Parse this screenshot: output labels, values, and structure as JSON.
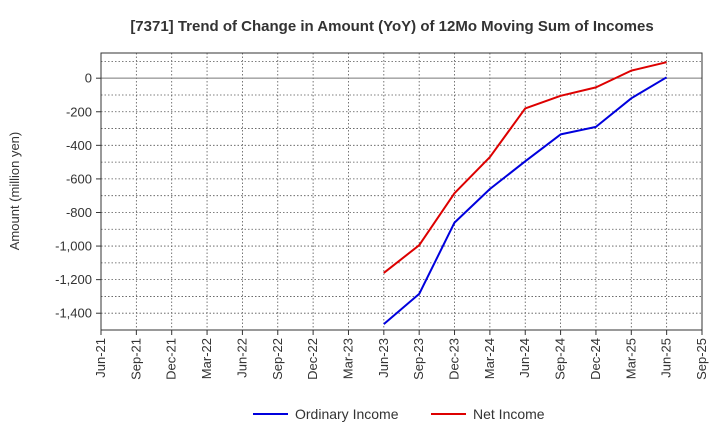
{
  "chart_data": {
    "type": "line",
    "title": "[7371]  Trend of Change in Amount (YoY) of 12Mo Moving Sum of Incomes",
    "ylabel": "Amount (million yen)",
    "xlabel": "",
    "categories": [
      "Jun-21",
      "Sep-21",
      "Dec-21",
      "Mar-22",
      "Jun-22",
      "Sep-22",
      "Dec-22",
      "Mar-23",
      "Jun-23",
      "Sep-23",
      "Dec-23",
      "Mar-24",
      "Jun-24",
      "Sep-24",
      "Dec-24",
      "Mar-25",
      "Jun-25",
      "Sep-25"
    ],
    "ylim": [
      -1500,
      150
    ],
    "yticks": [
      0,
      -200,
      -400,
      -600,
      -800,
      -1000,
      -1200,
      -1400
    ],
    "ytick_labels": [
      "0",
      "-200",
      "-400",
      "-600",
      "-800",
      "-1,000",
      "-1,200",
      "-1,400"
    ],
    "grid": true,
    "legend_position": "bottom",
    "series": [
      {
        "name": "Ordinary Income",
        "color": "#0000dd",
        "values": [
          null,
          null,
          null,
          null,
          null,
          null,
          null,
          null,
          -1465,
          -1285,
          -860,
          -660,
          -495,
          -335,
          -290,
          -120,
          5,
          null
        ]
      },
      {
        "name": "Net Income",
        "color": "#dd0000",
        "values": [
          null,
          null,
          null,
          null,
          null,
          null,
          null,
          null,
          -1160,
          -995,
          -685,
          -470,
          -180,
          -105,
          -55,
          45,
          95,
          null
        ]
      }
    ]
  }
}
